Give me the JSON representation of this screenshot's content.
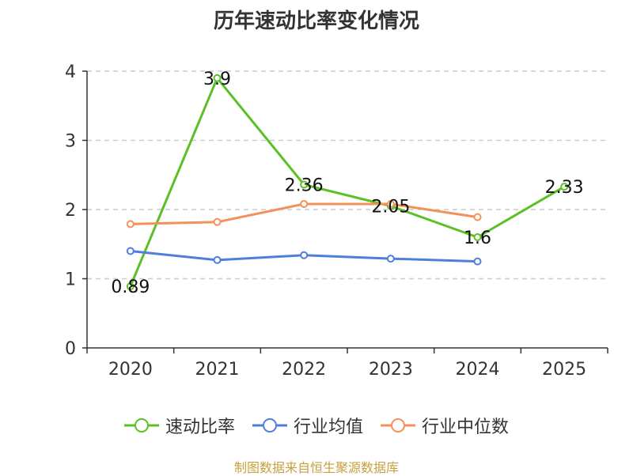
{
  "chart_data": {
    "type": "line",
    "title": "历年速动比率变化情况",
    "categories": [
      "2020",
      "2021",
      "2022",
      "2023",
      "2024",
      "2025"
    ],
    "ylim": [
      0,
      4
    ],
    "yticks": [
      "0",
      "1",
      "2",
      "3",
      "4"
    ],
    "grid": true,
    "legend_position": "bottom",
    "series": [
      {
        "name": "速动比率",
        "color": "#5bc025",
        "values": [
          0.89,
          3.9,
          2.36,
          2.05,
          1.6,
          2.33
        ],
        "labels": [
          "0.89",
          "3.9",
          "2.36",
          "2.05",
          "1.6",
          "2.33"
        ]
      },
      {
        "name": "行业均值",
        "color": "#4f7fdc",
        "values": [
          1.4,
          1.27,
          1.34,
          1.29,
          1.25,
          null
        ]
      },
      {
        "name": "行业中位数",
        "color": "#f4915a",
        "values": [
          1.79,
          1.82,
          2.08,
          2.08,
          1.89,
          null
        ]
      }
    ],
    "source": "制图数据来自恒生聚源数据库"
  }
}
